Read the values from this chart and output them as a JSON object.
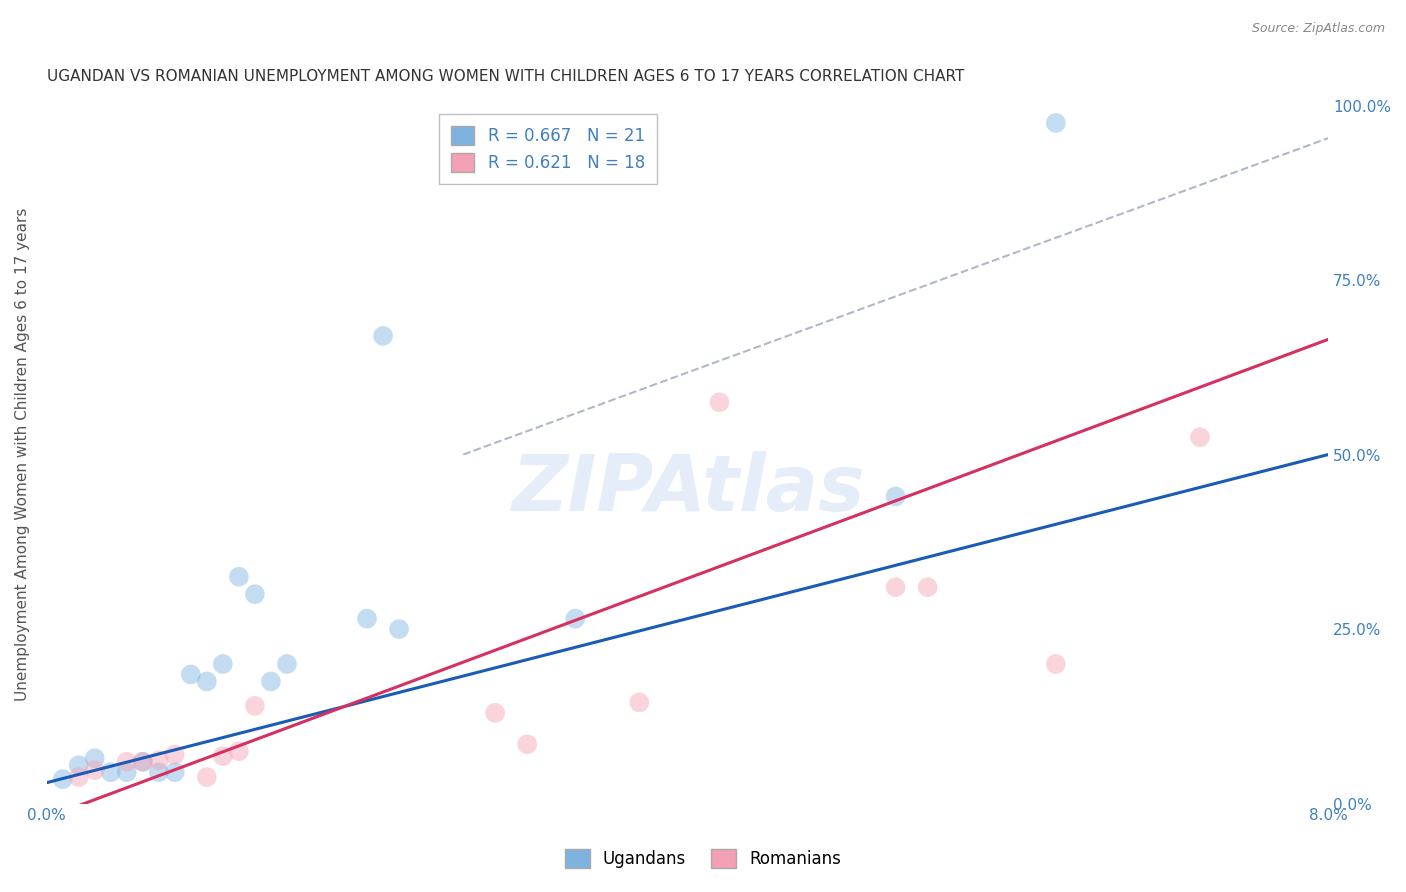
{
  "title": "UGANDAN VS ROMANIAN UNEMPLOYMENT AMONG WOMEN WITH CHILDREN AGES 6 TO 17 YEARS CORRELATION CHART",
  "source": "Source: ZipAtlas.com",
  "ylabel": "Unemployment Among Women with Children Ages 6 to 17 years",
  "watermark": "ZIPAtlas",
  "xlim": [
    0.0,
    0.08
  ],
  "ylim": [
    0.0,
    1.0
  ],
  "xticks": [
    0.0,
    0.01,
    0.02,
    0.03,
    0.04,
    0.05,
    0.06,
    0.07,
    0.08
  ],
  "yticks_right": [
    0.0,
    0.25,
    0.5,
    0.75,
    1.0
  ],
  "ytick_labels_right": [
    "0.0%",
    "25.0%",
    "50.0%",
    "75.0%",
    "100.0%"
  ],
  "ugandan_R": 0.667,
  "ugandan_N": 21,
  "romanian_R": 0.621,
  "romanian_N": 18,
  "ugandan_color": "#7eb3e0",
  "romanian_color": "#f4a0b5",
  "ugandan_line_color": "#1a5cb5",
  "romanian_line_color": "#d63060",
  "ref_line_color": "#b0b8c8",
  "ugandan_x": [
    0.001,
    0.002,
    0.003,
    0.004,
    0.005,
    0.006,
    0.007,
    0.008,
    0.009,
    0.01,
    0.011,
    0.012,
    0.013,
    0.014,
    0.015,
    0.02,
    0.021,
    0.022,
    0.033,
    0.053,
    0.063
  ],
  "ugandan_y": [
    0.035,
    0.055,
    0.065,
    0.045,
    0.045,
    0.06,
    0.045,
    0.045,
    0.185,
    0.175,
    0.2,
    0.325,
    0.3,
    0.175,
    0.2,
    0.265,
    0.67,
    0.25,
    0.265,
    0.44,
    0.975
  ],
  "romanian_x": [
    0.002,
    0.003,
    0.005,
    0.006,
    0.007,
    0.008,
    0.01,
    0.011,
    0.012,
    0.013,
    0.028,
    0.03,
    0.037,
    0.042,
    0.053,
    0.055,
    0.063,
    0.072
  ],
  "romanian_y": [
    0.038,
    0.048,
    0.06,
    0.06,
    0.062,
    0.07,
    0.038,
    0.068,
    0.075,
    0.14,
    0.13,
    0.085,
    0.145,
    0.575,
    0.31,
    0.31,
    0.2,
    0.525
  ],
  "ugandan_line_x": [
    0.0,
    0.08
  ],
  "ugandan_line_y": [
    0.03,
    0.5
  ],
  "romanian_line_x": [
    0.0,
    0.08
  ],
  "romanian_line_y": [
    -0.02,
    0.665
  ],
  "ref_line_x": [
    0.026,
    0.082
  ],
  "ref_line_y": [
    0.5,
    0.97
  ],
  "background_color": "#ffffff",
  "grid_color": "#cccccc",
  "title_color": "#333333",
  "axis_label_color": "#555555",
  "tick_color": "#4080c0",
  "marker_size": 200,
  "marker_alpha": 0.45
}
